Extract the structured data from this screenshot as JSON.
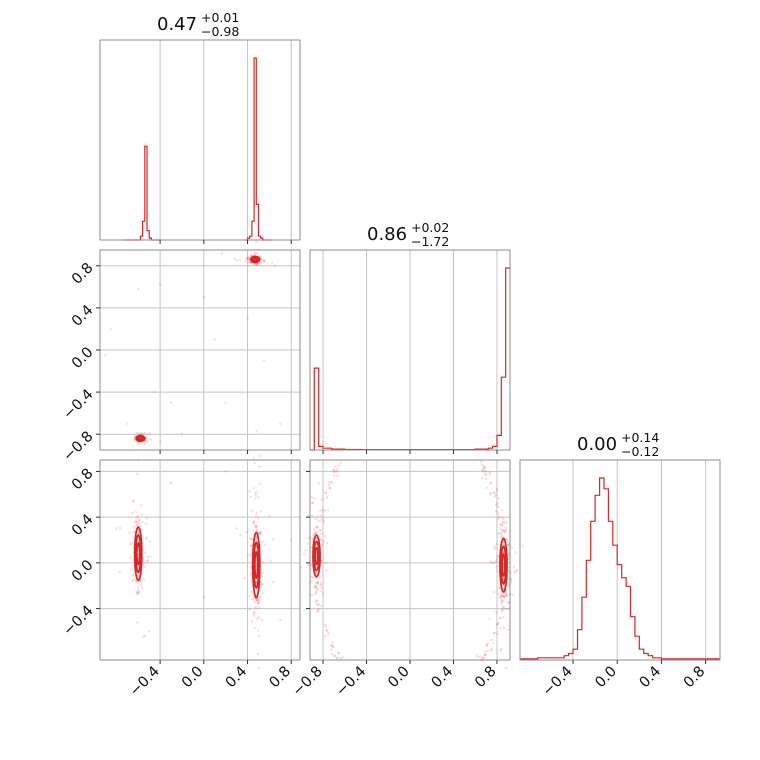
{
  "figure": {
    "type": "corner",
    "parameters": 3
  },
  "colors": {
    "series": "#d62728",
    "grid": "#c4c4c4",
    "frame": "#8c8c8c"
  },
  "chart_data": [
    {
      "type": "bar",
      "panel": "diagonal-1",
      "title": {
        "median": "0.47",
        "plus": "+0.01",
        "minus": "−0.98"
      },
      "xlim": [
        -0.95,
        0.88
      ],
      "bin_edges": [
        -0.72,
        -0.7,
        -0.68,
        -0.66,
        -0.64,
        -0.62,
        -0.6,
        -0.58,
        -0.56,
        -0.54,
        -0.52,
        -0.5,
        -0.48,
        -0.46,
        -0.44,
        -0.42,
        -0.4,
        0.38,
        0.4,
        0.42,
        0.44,
        0.46,
        0.48,
        0.5,
        0.52,
        0.54,
        0.56,
        0.58,
        0.6,
        0.62
      ],
      "counts": [
        0,
        0,
        0,
        0,
        0,
        0,
        0,
        2,
        10,
        50,
        5,
        1,
        0,
        0,
        0,
        0,
        null,
        0,
        1,
        2,
        10,
        97,
        19,
        2,
        1,
        0,
        0,
        0,
        0
      ],
      "x_ticks": [
        "−0.4",
        "0.0",
        "0.4",
        "0.8"
      ]
    },
    {
      "type": "bar",
      "panel": "diagonal-2",
      "title": {
        "median": "0.86",
        "plus": "+0.02",
        "minus": "−1.72"
      },
      "xlim": [
        -0.92,
        0.92
      ],
      "bin_edges": [
        -0.92,
        -0.88,
        -0.84,
        -0.8,
        -0.76,
        -0.72,
        -0.68,
        -0.64,
        -0.6,
        -0.56,
        -0.52,
        -0.48,
        -0.44,
        -0.4,
        -0.36,
        -0.32,
        -0.28,
        -0.24,
        -0.2,
        -0.16,
        -0.12,
        -0.08,
        -0.04,
        0.0,
        0.04,
        0.08,
        0.12,
        0.16,
        0.2,
        0.24,
        0.28,
        0.32,
        0.36,
        0.4,
        0.44,
        0.48,
        0.52,
        0.56,
        0.6,
        0.64,
        0.68,
        0.72,
        0.76,
        0.8,
        0.84,
        0.88,
        0.92
      ],
      "counts": [
        0,
        45,
        2,
        1,
        1,
        0.5,
        0.5,
        0.5,
        0.3,
        0.3,
        0.3,
        0.3,
        0.2,
        0.2,
        0.2,
        0.2,
        0.2,
        0.2,
        0.2,
        0.2,
        0.2,
        0.2,
        0.2,
        0.2,
        0.2,
        0.2,
        0.2,
        0.2,
        0.2,
        0.2,
        0.2,
        0.2,
        0.2,
        0.2,
        0.2,
        0.2,
        0.2,
        0.2,
        0.5,
        0.5,
        0.5,
        1,
        2,
        8,
        40,
        100
      ],
      "x_ticks": [
        "−0.8",
        "−0.4",
        "0.0",
        "0.4",
        "0.8"
      ]
    },
    {
      "type": "bar",
      "panel": "diagonal-3",
      "title": {
        "median": "0.00",
        "plus": "+0.14",
        "minus": "−0.12"
      },
      "xlim": [
        -0.88,
        0.93
      ],
      "bin_edges": [
        -0.88,
        -0.84,
        -0.8,
        -0.76,
        -0.72,
        -0.68,
        -0.64,
        -0.6,
        -0.56,
        -0.52,
        -0.48,
        -0.44,
        -0.4,
        -0.36,
        -0.32,
        -0.28,
        -0.24,
        -0.2,
        -0.16,
        -0.12,
        -0.08,
        -0.04,
        0.0,
        0.04,
        0.08,
        0.12,
        0.16,
        0.2,
        0.24,
        0.28,
        0.32,
        0.36,
        0.4,
        0.44,
        0.48,
        0.52,
        0.56,
        0.6,
        0.64,
        0.68,
        0.72,
        0.76,
        0.8,
        0.84,
        0.88,
        0.93
      ],
      "counts": [
        0.5,
        0.5,
        0.5,
        0.5,
        1,
        1,
        1,
        1,
        1,
        1,
        2,
        3,
        5,
        14,
        29,
        46,
        64,
        76,
        84,
        79,
        64,
        53,
        44,
        38,
        34,
        20,
        11,
        5,
        3,
        2,
        1,
        1,
        0.5,
        0.5,
        0.5,
        0.5,
        0.5,
        0.5,
        0.5,
        0.5,
        0.5,
        0.5,
        0.5,
        0.5,
        0.5
      ],
      "x_ticks": [
        "−0.4",
        "0.0",
        "0.4",
        "0.8"
      ]
    },
    {
      "type": "scatter",
      "panel": "p2-vs-p1",
      "xlim": [
        -0.95,
        0.88
      ],
      "ylim": [
        -0.95,
        0.95
      ],
      "y_ticks": [
        "0.8",
        "0.4",
        "0.0",
        "−0.4",
        "−0.8"
      ],
      "clusters": [
        {
          "x": -0.58,
          "y": -0.84,
          "sx": 0.03,
          "sy": 0.02,
          "n": 70
        },
        {
          "x": 0.47,
          "y": 0.86,
          "sx": 0.03,
          "sy": 0.02,
          "n": 110
        }
      ],
      "outliers": [
        [
          -0.85,
          0.2
        ],
        [
          -0.6,
          0.58
        ],
        [
          -0.4,
          0.62
        ],
        [
          -0.9,
          -0.05
        ],
        [
          -0.3,
          -0.5
        ],
        [
          0.2,
          -0.5
        ],
        [
          0.4,
          0.3
        ],
        [
          0.1,
          0.1
        ],
        [
          0.55,
          -0.1
        ],
        [
          0.7,
          -0.7
        ],
        [
          -0.7,
          -0.7
        ],
        [
          -0.45,
          -0.4
        ],
        [
          0.65,
          0.8
        ],
        [
          0.3,
          0.85
        ],
        [
          -0.2,
          -0.8
        ],
        [
          0.0,
          0.5
        ]
      ]
    },
    {
      "type": "scatter",
      "panel": "p3-vs-p1",
      "xlim": [
        -0.95,
        0.88
      ],
      "ylim": [
        -0.85,
        0.9
      ],
      "y_ticks": [
        "0.8",
        "0.4",
        "0.0",
        "−0.4"
      ],
      "x_ticks": [
        "−0.4",
        "0.0",
        "0.4",
        "0.8"
      ],
      "clusters": [
        {
          "x": -0.6,
          "y": 0.08,
          "sx": 0.025,
          "sy": 0.18,
          "n": 160
        },
        {
          "x": 0.48,
          "y": -0.02,
          "sx": 0.025,
          "sy": 0.22,
          "n": 240
        }
      ],
      "outliers": [
        [
          -0.3,
          0.7
        ],
        [
          0.2,
          0.8
        ],
        [
          -0.8,
          0.3
        ],
        [
          0.7,
          -0.5
        ],
        [
          0.0,
          -0.3
        ],
        [
          0.3,
          0.3
        ],
        [
          -0.5,
          -0.6
        ],
        [
          0.8,
          0.2
        ]
      ]
    },
    {
      "type": "scatter",
      "panel": "p3-vs-p2",
      "xlim": [
        -0.92,
        0.92
      ],
      "ylim": [
        -0.85,
        0.9
      ],
      "x_ticks": [
        "−0.8",
        "−0.4",
        "0.0",
        "0.4",
        "0.8"
      ],
      "clusters": [
        {
          "x": -0.86,
          "y": 0.06,
          "sx": 0.025,
          "sy": 0.14,
          "n": 160
        },
        {
          "x": 0.86,
          "y": -0.02,
          "sx": 0.025,
          "sy": 0.18,
          "n": 240
        }
      ],
      "arcs": true
    }
  ]
}
